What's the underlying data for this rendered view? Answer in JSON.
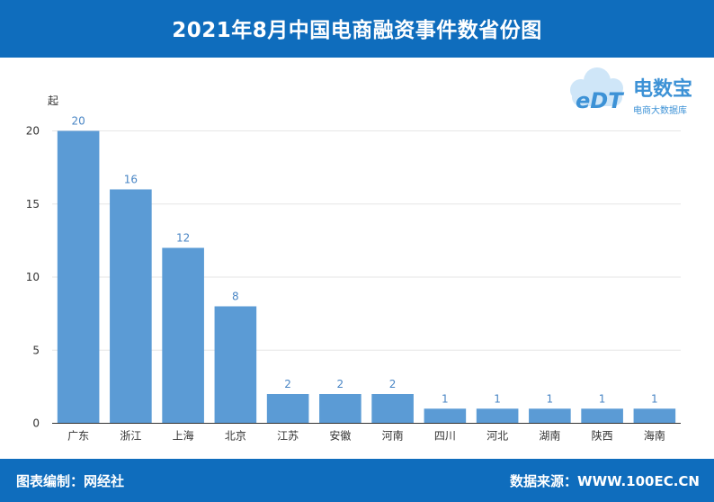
{
  "header": {
    "title": "2021年8月中国电商融资事件数省份图"
  },
  "footer": {
    "left": "图表编制：网经社",
    "right": "数据来源：WWW.100EC.CN"
  },
  "logo": {
    "mark": "eDT",
    "name": "电数宝",
    "tagline": "电商大数据库"
  },
  "colors": {
    "banner": "#0f6dbd",
    "bar": "#5b9bd5",
    "label": "#4a86c5"
  },
  "chart_data": {
    "type": "bar",
    "ylabel": "起",
    "ylim": [
      0,
      20
    ],
    "yticks": [
      0,
      5,
      10,
      15,
      20
    ],
    "categories": [
      "广东",
      "浙江",
      "上海",
      "北京",
      "江苏",
      "安徽",
      "河南",
      "四川",
      "河北",
      "湖南",
      "陕西",
      "海南"
    ],
    "values": [
      20,
      16,
      12,
      8,
      2,
      2,
      2,
      1,
      1,
      1,
      1,
      1
    ],
    "grid": true
  }
}
